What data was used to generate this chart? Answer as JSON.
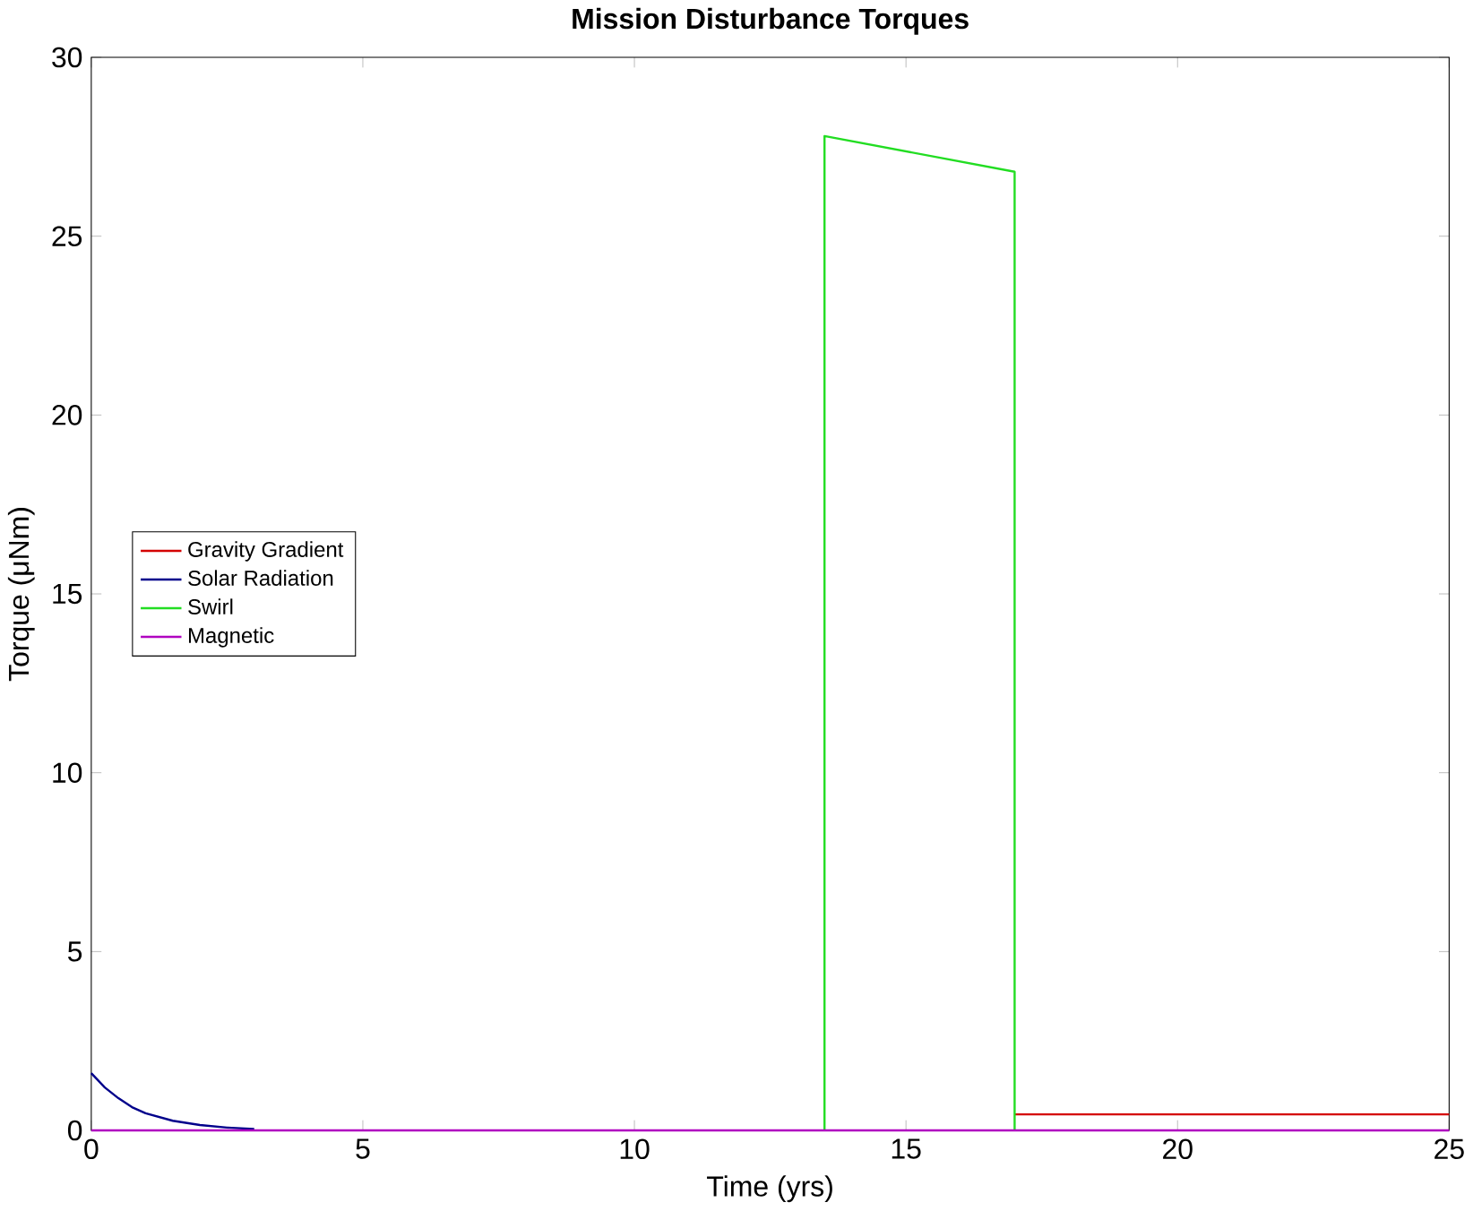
{
  "chart_data": {
    "type": "line",
    "title": "Mission Disturbance Torques",
    "xlabel": "Time (yrs)",
    "ylabel": "Torque (μNm)",
    "xlim": [
      0,
      25
    ],
    "ylim": [
      0,
      30
    ],
    "xticks": [
      0,
      5,
      10,
      15,
      20,
      25
    ],
    "yticks": [
      0,
      5,
      10,
      15,
      20,
      25,
      30
    ],
    "legend": "left",
    "grid": false,
    "marker": "none",
    "line_style": "solid",
    "series": [
      {
        "name": "Gravity Gradient",
        "color": "#d40000",
        "x": [
          17,
          25
        ],
        "values": [
          0.45,
          0.45
        ]
      },
      {
        "name": "Solar Radiation",
        "color": "#00008b",
        "x": [
          0,
          0.25,
          0.5,
          0.75,
          1,
          1.5,
          2,
          2.5,
          3
        ],
        "values": [
          1.6,
          1.2,
          0.9,
          0.65,
          0.48,
          0.27,
          0.15,
          0.08,
          0.04
        ]
      },
      {
        "name": "Swirl",
        "color": "#22dd22",
        "x": [
          13.5,
          13.5,
          17,
          17
        ],
        "values": [
          0,
          27.8,
          26.8,
          0
        ]
      },
      {
        "name": "Magnetic",
        "color": "#b000c0",
        "x": [
          0,
          25
        ],
        "values": [
          0,
          0
        ]
      }
    ]
  }
}
